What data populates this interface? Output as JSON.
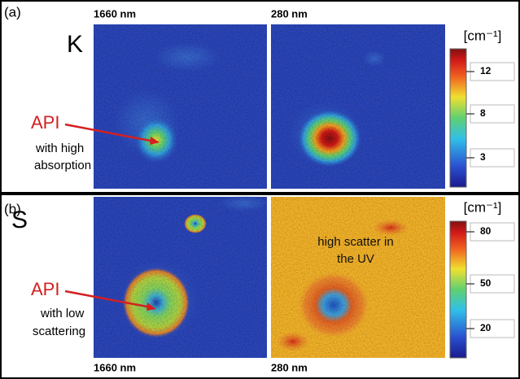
{
  "panels": [
    {
      "label": "(a)",
      "quantity": "K",
      "images": [
        {
          "wavelength": "1660 nm"
        },
        {
          "wavelength": "280 nm"
        }
      ],
      "annotation": {
        "title": "API",
        "lines": [
          "with high",
          "absorption"
        ]
      },
      "colorbar": {
        "unit": "[cm⁻¹]",
        "ticks": [
          12,
          8,
          3
        ]
      }
    },
    {
      "label": "(b)",
      "quantity": "S",
      "images": [
        {
          "wavelength": "1660 nm"
        },
        {
          "wavelength": "280 nm"
        }
      ],
      "annotation": {
        "title": "API",
        "lines": [
          "with low",
          "scattering"
        ]
      },
      "image_note": [
        "high scatter in",
        "the UV"
      ],
      "colorbar": {
        "unit": "[cm⁻¹]",
        "ticks": [
          80,
          50,
          20
        ]
      }
    }
  ]
}
